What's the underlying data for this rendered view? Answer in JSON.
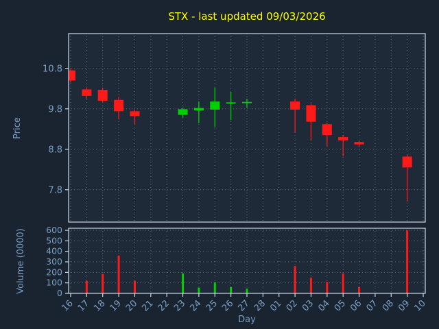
{
  "window": {
    "title": "STX - last updated 09/03/2026"
  },
  "chart_data": {
    "type": "candlestick",
    "title": "STX - last updated 09/03/2026",
    "xlabel": "Day",
    "ylabel_price": "Price",
    "ylabel_volume": "Volume (0000)",
    "x_labels": [
      "16",
      "17",
      "18",
      "19",
      "20",
      "21",
      "22",
      "23",
      "24",
      "25",
      "26",
      "27",
      "28",
      "01",
      "02",
      "03",
      "04",
      "05",
      "06",
      "07",
      "08",
      "09",
      "10"
    ],
    "price_ticks": [
      10.8,
      9.8,
      8.8,
      7.8
    ],
    "price_ylim": [
      7.0,
      11.66
    ],
    "volume_ticks": [
      0,
      100,
      200,
      300,
      400,
      500,
      600
    ],
    "volume_ylim": [
      0,
      620
    ],
    "grid": true,
    "legend": "none",
    "candles": [
      {
        "day": "16",
        "open": 10.75,
        "high": 10.8,
        "low": 10.45,
        "close": 10.5,
        "volume": 0
      },
      {
        "day": "17",
        "open": 10.28,
        "high": 10.33,
        "low": 10.05,
        "close": 10.12,
        "volume": 120
      },
      {
        "day": "18",
        "open": 10.27,
        "high": 10.32,
        "low": 9.95,
        "close": 10.0,
        "volume": 185
      },
      {
        "day": "19",
        "open": 10.02,
        "high": 10.1,
        "low": 9.55,
        "close": 9.74,
        "volume": 360
      },
      {
        "day": "20",
        "open": 9.74,
        "high": 9.78,
        "low": 9.42,
        "close": 9.62,
        "volume": 120
      },
      {
        "day": "23",
        "open": 9.65,
        "high": 9.83,
        "low": 9.58,
        "close": 9.79,
        "volume": 190
      },
      {
        "day": "24",
        "open": 9.76,
        "high": 9.98,
        "low": 9.45,
        "close": 9.82,
        "volume": 55
      },
      {
        "day": "25",
        "open": 9.78,
        "high": 10.33,
        "low": 9.35,
        "close": 9.98,
        "volume": 105
      },
      {
        "day": "26",
        "open": 9.93,
        "high": 10.22,
        "low": 9.52,
        "close": 9.96,
        "volume": 60
      },
      {
        "day": "27",
        "open": 9.94,
        "high": 10.05,
        "low": 9.83,
        "close": 9.97,
        "volume": 45
      },
      {
        "day": "02",
        "open": 9.98,
        "high": 10.05,
        "low": 9.22,
        "close": 9.78,
        "volume": 260
      },
      {
        "day": "03",
        "open": 9.89,
        "high": 9.93,
        "low": 9.03,
        "close": 9.48,
        "volume": 150
      },
      {
        "day": "04",
        "open": 9.42,
        "high": 9.46,
        "low": 8.88,
        "close": 9.15,
        "volume": 110
      },
      {
        "day": "05",
        "open": 9.1,
        "high": 9.15,
        "low": 8.62,
        "close": 9.02,
        "volume": 190
      },
      {
        "day": "06",
        "open": 8.98,
        "high": 9.02,
        "low": 8.86,
        "close": 8.92,
        "volume": 60
      },
      {
        "day": "09",
        "open": 8.62,
        "high": 8.66,
        "low": 7.52,
        "close": 8.35,
        "volume": 600
      }
    ],
    "colors": {
      "up": "#00cf00",
      "down": "#ff1a1a",
      "title": "#ffff00",
      "axis_text": "#7c9fc5",
      "grid": "#a8bccc",
      "spine": "#cdd9e5",
      "figure_bg": "#192430",
      "plot_bg": "#1e2a38"
    }
  }
}
